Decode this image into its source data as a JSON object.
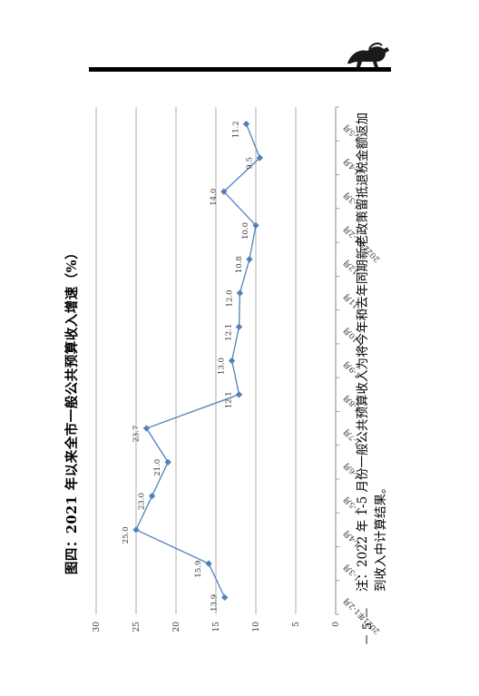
{
  "page": {
    "note": "注：2022 年 1-5 月份一般公共预算收入为将今年和去年同期新老政策留抵退税金额返加到收入中计算结果。",
    "page_number": "－ 5 －"
  },
  "chart_data": {
    "type": "line",
    "title": "图四：2021 年以来全市一般公共预算收入增速（%）",
    "categories": [
      "2021年1-2月",
      "1-3月",
      "1-4月",
      "1-5月",
      "1-6月",
      "1-7月",
      "1-8月",
      "1-9月",
      "1-10月",
      "1-11月",
      "1-12月",
      "2022年1-2月",
      "1-3月",
      "1-4月",
      "1-5月"
    ],
    "values": [
      13.9,
      15.9,
      25.0,
      23.0,
      21.0,
      23.7,
      12.1,
      13.0,
      12.1,
      12.0,
      10.8,
      10.0,
      14.0,
      9.5,
      11.2
    ],
    "ylim": [
      0,
      30
    ],
    "yticks": [
      0,
      5,
      10,
      15,
      20,
      25,
      30
    ],
    "grid": true,
    "legend": "none",
    "line_color": "#4f81bd"
  }
}
